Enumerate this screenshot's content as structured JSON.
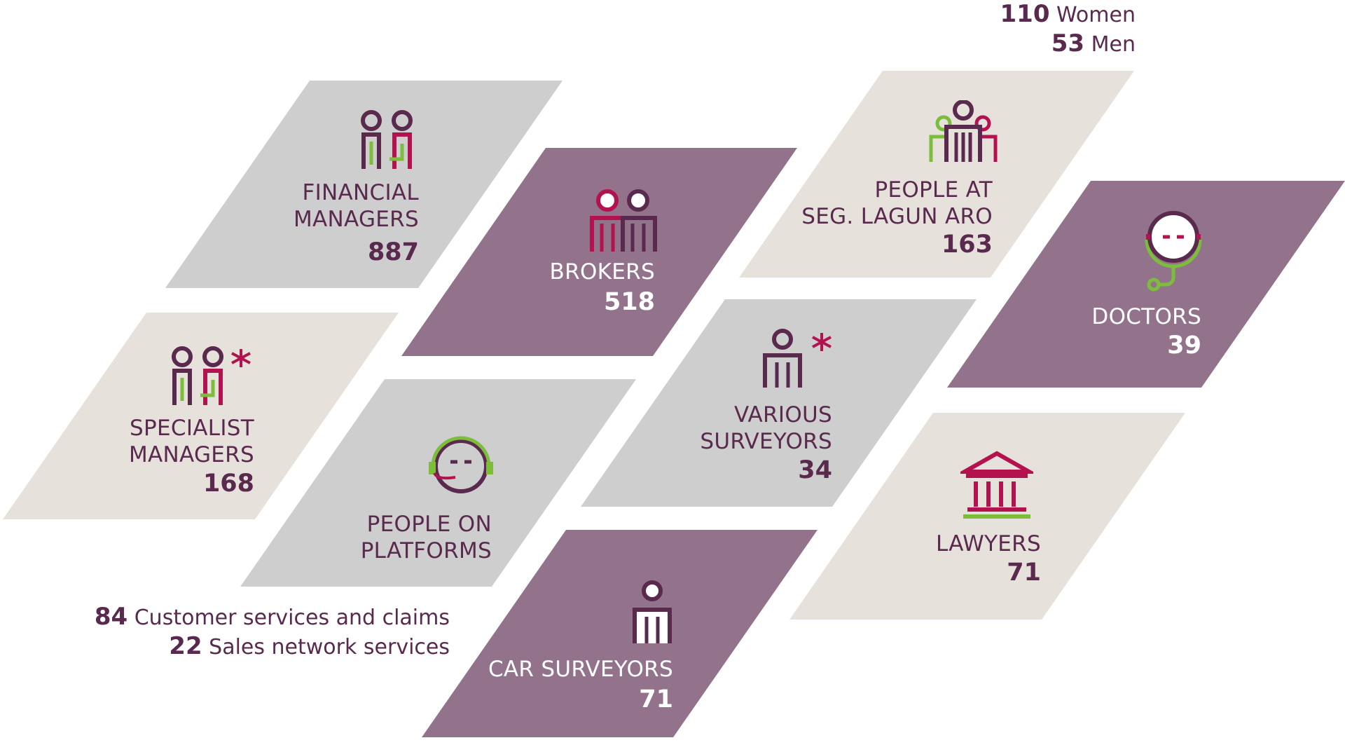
{
  "colors": {
    "gray_tile": "#cecece",
    "beige_tile": "#e6e1db",
    "purple_tile": "#93738b",
    "plum": "#5a2a4e",
    "crimson": "#b4124e",
    "green": "#7cbd3a"
  },
  "tiles": {
    "financial_managers": {
      "label_line1": "FINANCIAL",
      "label_line2": "MANAGERS",
      "value": "887",
      "icon": "two-managers-icon"
    },
    "brokers": {
      "label_line1": "BROKERS",
      "value": "518",
      "icon": "brokers-icon"
    },
    "people_lagun_aro": {
      "label_line1": "PEOPLE AT",
      "label_line2": "SEG. LAGUN ARO",
      "value": "163",
      "icon": "group-people-icon"
    },
    "doctors": {
      "label_line1": "DOCTORS",
      "value": "39",
      "icon": "stethoscope-icon"
    },
    "specialist_managers": {
      "label_line1": "SPECIALIST",
      "label_line2": "MANAGERS",
      "value": "168",
      "icon": "specialist-managers-icon"
    },
    "people_on_platforms": {
      "label_line1": "PEOPLE ON",
      "label_line2": "PLATFORMS",
      "icon": "headset-icon"
    },
    "various_surveyors": {
      "label_line1": "VARIOUS",
      "label_line2": "SURVEYORS",
      "value": "34",
      "icon": "surveyor-asterisk-icon"
    },
    "lawyers": {
      "label_line1": "LAWYERS",
      "value": "71",
      "icon": "courthouse-icon"
    },
    "car_surveyors": {
      "label_line1": "CAR SURVEYORS",
      "value": "71",
      "icon": "person-icon"
    }
  },
  "notes": {
    "lagun_aro": {
      "women_count": "110",
      "women_label": "Women",
      "men_count": "53",
      "men_label": "Men"
    },
    "platforms": {
      "customer_count": "84",
      "customer_label": "Customer services and claims",
      "sales_count": "22",
      "sales_label": "Sales network services"
    }
  }
}
